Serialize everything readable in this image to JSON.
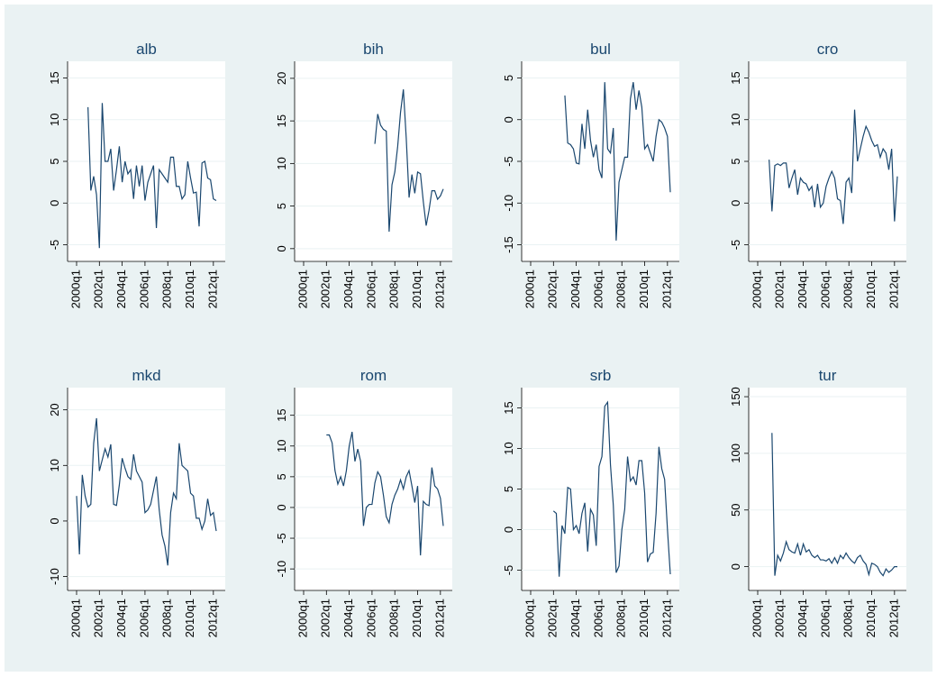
{
  "chart_data": [
    {
      "type": "line",
      "title": "alb",
      "color": "#1a476f",
      "grid": true,
      "x": [
        "2000q1",
        "2000q2",
        "2000q3",
        "2000q4",
        "2001q1",
        "2001q2",
        "2001q3",
        "2001q4",
        "2002q1",
        "2002q2",
        "2002q3",
        "2002q4",
        "2003q1",
        "2003q2",
        "2003q3",
        "2003q4",
        "2004q1",
        "2004q2",
        "2004q3",
        "2004q4",
        "2005q1",
        "2005q2",
        "2005q3",
        "2005q4",
        "2006q1",
        "2006q2",
        "2006q3",
        "2006q4",
        "2007q1",
        "2007q2",
        "2007q3",
        "2007q4",
        "2008q1",
        "2008q2",
        "2008q3",
        "2008q4",
        "2009q1",
        "2009q2",
        "2009q3",
        "2009q4",
        "2010q1",
        "2010q2",
        "2010q3",
        "2010q4",
        "2011q1",
        "2011q2",
        "2011q3",
        "2011q4",
        "2012q1",
        "2012q2"
      ],
      "values": [
        null,
        null,
        null,
        null,
        11.5,
        1.5,
        3.2,
        1,
        -5.4,
        12,
        5,
        5,
        6.5,
        1.5,
        4,
        6.8,
        2.5,
        5,
        3.5,
        4,
        0.5,
        4.5,
        2,
        4.5,
        0.3,
        2.5,
        3.5,
        4.5,
        -3,
        4,
        3.5,
        3,
        2.5,
        5.5,
        5.5,
        2,
        2,
        0.5,
        1,
        5,
        3,
        1.2,
        1.3,
        -2.8,
        4.8,
        5,
        3,
        2.8,
        0.5,
        0.3
      ],
      "ylim": [
        -7,
        17
      ],
      "yticks": [
        -5,
        0,
        5,
        10,
        15
      ],
      "xticks": [
        "2000q1",
        "2002q1",
        "2004q1",
        "2006q1",
        "2008q1",
        "2010q1",
        "2012q1"
      ]
    },
    {
      "type": "line",
      "title": "bih",
      "color": "#1a476f",
      "grid": true,
      "x": [
        "2000q1",
        "2000q2",
        "2000q3",
        "2000q4",
        "2001q1",
        "2001q2",
        "2001q3",
        "2001q4",
        "2002q1",
        "2002q2",
        "2002q3",
        "2002q4",
        "2003q1",
        "2003q2",
        "2003q3",
        "2003q4",
        "2004q1",
        "2004q2",
        "2004q3",
        "2004q4",
        "2005q1",
        "2005q2",
        "2005q3",
        "2005q4",
        "2006q1",
        "2006q2",
        "2006q3",
        "2006q4",
        "2007q1",
        "2007q2",
        "2007q3",
        "2007q4",
        "2008q1",
        "2008q2",
        "2008q3",
        "2008q4",
        "2009q1",
        "2009q2",
        "2009q3",
        "2009q4",
        "2010q1",
        "2010q2",
        "2010q3",
        "2010q4",
        "2011q1",
        "2011q2",
        "2011q3",
        "2011q4",
        "2012q1",
        "2012q2"
      ],
      "values": [
        null,
        null,
        null,
        null,
        null,
        null,
        null,
        null,
        null,
        null,
        null,
        null,
        null,
        null,
        null,
        null,
        null,
        null,
        null,
        null,
        null,
        null,
        null,
        null,
        null,
        12.3,
        15.8,
        14.5,
        14,
        13.8,
        2,
        7.5,
        9,
        12,
        16,
        18.7,
        13,
        6,
        8.7,
        6.5,
        9,
        8.8,
        5.5,
        2.7,
        4.5,
        6.8,
        6.8,
        5.8,
        6.2,
        7
      ],
      "ylim": [
        -1.5,
        22
      ],
      "yticks": [
        0,
        5,
        10,
        15,
        20
      ],
      "xticks": [
        "2000q1",
        "2002q1",
        "2004q1",
        "2006q1",
        "2008q1",
        "2010q1",
        "2012q1"
      ]
    },
    {
      "type": "line",
      "title": "bul",
      "color": "#1a476f",
      "grid": true,
      "x": [
        "2000q1",
        "2000q2",
        "2000q3",
        "2000q4",
        "2001q1",
        "2001q2",
        "2001q3",
        "2001q4",
        "2002q1",
        "2002q2",
        "2002q3",
        "2002q4",
        "2003q1",
        "2003q2",
        "2003q3",
        "2003q4",
        "2004q1",
        "2004q2",
        "2004q3",
        "2004q4",
        "2005q1",
        "2005q2",
        "2005q3",
        "2005q4",
        "2006q1",
        "2006q2",
        "2006q3",
        "2006q4",
        "2007q1",
        "2007q2",
        "2007q3",
        "2007q4",
        "2008q1",
        "2008q2",
        "2008q3",
        "2008q4",
        "2009q1",
        "2009q2",
        "2009q3",
        "2009q4",
        "2010q1",
        "2010q2",
        "2010q3",
        "2010q4",
        "2011q1",
        "2011q2",
        "2011q3",
        "2011q4",
        "2012q1",
        "2012q2"
      ],
      "values": [
        null,
        null,
        null,
        null,
        null,
        null,
        null,
        null,
        null,
        null,
        null,
        null,
        2.9,
        -2.8,
        -3,
        -3.5,
        -5.2,
        -5.3,
        -0.5,
        -3.5,
        1.2,
        -2.5,
        -4.5,
        -3,
        -6,
        -7,
        4.5,
        -3.5,
        -4,
        -1,
        -14.5,
        -7.5,
        -6,
        -4.5,
        -4.5,
        2.5,
        4.5,
        1.2,
        3.5,
        1.5,
        -3.5,
        -3,
        -4,
        -5,
        -2,
        0,
        -0.3,
        -1,
        -2,
        -8.7
      ],
      "ylim": [
        -17,
        7
      ],
      "yticks": [
        -15,
        -10,
        -5,
        0,
        5
      ],
      "xticks": [
        "2000q1",
        "2002q1",
        "2004q1",
        "2006q1",
        "2008q1",
        "2010q1",
        "2012q1"
      ]
    },
    {
      "type": "line",
      "title": "cro",
      "color": "#1a476f",
      "grid": true,
      "x": [
        "2000q1",
        "2000q2",
        "2000q3",
        "2000q4",
        "2001q1",
        "2001q2",
        "2001q3",
        "2001q4",
        "2002q1",
        "2002q2",
        "2002q3",
        "2002q4",
        "2003q1",
        "2003q2",
        "2003q3",
        "2003q4",
        "2004q1",
        "2004q2",
        "2004q3",
        "2004q4",
        "2005q1",
        "2005q2",
        "2005q3",
        "2005q4",
        "2006q1",
        "2006q2",
        "2006q3",
        "2006q4",
        "2007q1",
        "2007q2",
        "2007q3",
        "2007q4",
        "2008q1",
        "2008q2",
        "2008q3",
        "2008q4",
        "2009q1",
        "2009q2",
        "2009q3",
        "2009q4",
        "2010q1",
        "2010q2",
        "2010q3",
        "2010q4",
        "2011q1",
        "2011q2",
        "2011q3",
        "2011q4",
        "2012q1",
        "2012q2"
      ],
      "values": [
        null,
        null,
        null,
        null,
        5.2,
        -1,
        4.5,
        4.7,
        4.5,
        4.8,
        4.8,
        1.8,
        3,
        4,
        1,
        3,
        2.5,
        2.3,
        1.5,
        2,
        -0.5,
        2.3,
        -0.5,
        0,
        2,
        3,
        3.8,
        3,
        0.5,
        0.3,
        -2.5,
        2.5,
        3,
        1.2,
        11.2,
        5,
        6.5,
        8,
        9.2,
        8.5,
        7.5,
        6.8,
        7,
        5.5,
        6.5,
        6,
        4,
        6.5,
        -2.2,
        3.2
      ],
      "ylim": [
        -7,
        17
      ],
      "yticks": [
        -5,
        0,
        5,
        10,
        15
      ],
      "xticks": [
        "2000q1",
        "2002q1",
        "2004q1",
        "2006q1",
        "2008q1",
        "2010q1",
        "2012q1"
      ]
    },
    {
      "type": "line",
      "title": "mkd",
      "color": "#1a476f",
      "grid": true,
      "x": [
        "2000q1",
        "2000q2",
        "2000q3",
        "2000q4",
        "2001q1",
        "2001q2",
        "2001q3",
        "2001q4",
        "2002q1",
        "2002q2",
        "2002q3",
        "2002q4",
        "2003q1",
        "2003q2",
        "2003q3",
        "2003q4",
        "2004q1",
        "2004q2",
        "2004q3",
        "2004q4",
        "2005q1",
        "2005q2",
        "2005q3",
        "2005q4",
        "2006q1",
        "2006q2",
        "2006q3",
        "2006q4",
        "2007q1",
        "2007q2",
        "2007q3",
        "2007q4",
        "2008q1",
        "2008q2",
        "2008q3",
        "2008q4",
        "2009q1",
        "2009q2",
        "2009q3",
        "2009q4",
        "2010q1",
        "2010q2",
        "2010q3",
        "2010q4",
        "2011q1",
        "2011q2",
        "2011q3",
        "2011q4",
        "2012q1",
        "2012q2"
      ],
      "values": [
        4.5,
        -6,
        8.3,
        4.5,
        2.5,
        3,
        14,
        18.5,
        9,
        11,
        13,
        11.5,
        13.8,
        3,
        2.8,
        6.5,
        11.3,
        9.5,
        8,
        7.5,
        12,
        9,
        8,
        7,
        1.5,
        2,
        3,
        5.5,
        8,
        2,
        -2.5,
        -4.5,
        -8,
        1.5,
        5,
        4,
        14,
        10,
        9.5,
        9,
        5,
        4.5,
        0.5,
        0.5,
        -1.5,
        0,
        4,
        1,
        1.5,
        -1.8
      ],
      "ylim": [
        -12.5,
        24
      ],
      "yticks": [
        -10,
        0,
        10,
        20
      ],
      "xticks": [
        "2000q1",
        "2002q1",
        "2004q1",
        "2006q1",
        "2008q1",
        "2010q1",
        "2012q1"
      ]
    },
    {
      "type": "line",
      "title": "rom",
      "color": "#1a476f",
      "grid": true,
      "x": [
        "2000q1",
        "2000q2",
        "2000q3",
        "2000q4",
        "2001q1",
        "2001q2",
        "2001q3",
        "2001q4",
        "2002q1",
        "2002q2",
        "2002q3",
        "2002q4",
        "2003q1",
        "2003q2",
        "2003q3",
        "2003q4",
        "2004q1",
        "2004q2",
        "2004q3",
        "2004q4",
        "2005q1",
        "2005q2",
        "2005q3",
        "2005q4",
        "2006q1",
        "2006q2",
        "2006q3",
        "2006q4",
        "2007q1",
        "2007q2",
        "2007q3",
        "2007q4",
        "2008q1",
        "2008q2",
        "2008q3",
        "2008q4",
        "2009q1",
        "2009q2",
        "2009q3",
        "2009q4",
        "2010q1",
        "2010q2",
        "2010q3",
        "2010q4",
        "2011q1",
        "2011q2",
        "2011q3",
        "2011q4",
        "2012q1",
        "2012q2"
      ],
      "values": [
        null,
        null,
        null,
        null,
        null,
        null,
        null,
        null,
        11.8,
        11.8,
        10.5,
        6,
        3.8,
        5,
        3.5,
        6,
        10,
        12.3,
        7.5,
        9.5,
        7.5,
        -3,
        0,
        0.5,
        0.5,
        4,
        5.8,
        5,
        2,
        -1.5,
        -2.5,
        0.5,
        2,
        3,
        4.5,
        3,
        5,
        6,
        3.5,
        0.8,
        3.5,
        -7.8,
        1,
        0.5,
        0.3,
        6.5,
        3.5,
        3,
        1.5,
        -3
      ],
      "ylim": [
        -13.5,
        19.5
      ],
      "yticks": [
        -10,
        -5,
        0,
        5,
        10,
        15
      ],
      "xticks": [
        "2000q1",
        "2002q1",
        "2004q1",
        "2006q1",
        "2008q1",
        "2010q1",
        "2012q1"
      ]
    },
    {
      "type": "line",
      "title": "srb",
      "color": "#1a476f",
      "grid": true,
      "x": [
        "2000q1",
        "2000q2",
        "2000q3",
        "2000q4",
        "2001q1",
        "2001q2",
        "2001q3",
        "2001q4",
        "2002q1",
        "2002q2",
        "2002q3",
        "2002q4",
        "2003q1",
        "2003q2",
        "2003q3",
        "2003q4",
        "2004q1",
        "2004q2",
        "2004q3",
        "2004q4",
        "2005q1",
        "2005q2",
        "2005q3",
        "2005q4",
        "2006q1",
        "2006q2",
        "2006q3",
        "2006q4",
        "2007q1",
        "2007q2",
        "2007q3",
        "2007q4",
        "2008q1",
        "2008q2",
        "2008q3",
        "2008q4",
        "2009q1",
        "2009q2",
        "2009q3",
        "2009q4",
        "2010q1",
        "2010q2",
        "2010q3",
        "2010q4",
        "2011q1",
        "2011q2",
        "2011q3",
        "2011q4",
        "2012q1",
        "2012q2"
      ],
      "values": [
        null,
        null,
        null,
        null,
        null,
        null,
        null,
        null,
        2.3,
        2,
        -5.8,
        0.5,
        -0.5,
        5.2,
        5,
        0,
        0.5,
        -0.5,
        2,
        3.3,
        -2.7,
        2.5,
        1.8,
        -2,
        7.8,
        9,
        15.2,
        15.7,
        8,
        3,
        -5.3,
        -4.5,
        0,
        2.5,
        9,
        6,
        6.5,
        5.5,
        8.5,
        8.5,
        4.5,
        -4,
        -3,
        -2.8,
        2,
        10.2,
        7.5,
        6.2,
        0,
        -5.5
      ],
      "ylim": [
        -7.5,
        17.5
      ],
      "yticks": [
        -5,
        0,
        5,
        10,
        15
      ],
      "xticks": [
        "2000q1",
        "2002q1",
        "2004q1",
        "2006q1",
        "2008q1",
        "2010q1",
        "2012q1"
      ]
    },
    {
      "type": "line",
      "title": "tur",
      "color": "#1a476f",
      "grid": true,
      "x": [
        "2000q1",
        "2000q2",
        "2000q3",
        "2000q4",
        "2001q1",
        "2001q2",
        "2001q3",
        "2001q4",
        "2002q1",
        "2002q2",
        "2002q3",
        "2002q4",
        "2003q1",
        "2003q2",
        "2003q3",
        "2003q4",
        "2004q1",
        "2004q2",
        "2004q3",
        "2004q4",
        "2005q1",
        "2005q2",
        "2005q3",
        "2005q4",
        "2006q1",
        "2006q2",
        "2006q3",
        "2006q4",
        "2007q1",
        "2007q2",
        "2007q3",
        "2007q4",
        "2008q1",
        "2008q2",
        "2008q3",
        "2008q4",
        "2009q1",
        "2009q2",
        "2009q3",
        "2009q4",
        "2010q1",
        "2010q2",
        "2010q3",
        "2010q4",
        "2011q1",
        "2011q2",
        "2011q3",
        "2011q4",
        "2012q1",
        "2012q2"
      ],
      "values": [
        null,
        null,
        null,
        null,
        null,
        118,
        -8,
        10,
        5,
        12,
        22,
        15,
        13,
        12,
        20,
        10,
        20,
        13,
        15,
        10,
        8,
        10,
        6,
        6,
        5,
        7,
        3,
        8,
        3,
        10,
        7,
        12,
        8,
        5,
        3,
        8,
        10,
        5,
        2,
        -7,
        3,
        2,
        0,
        -5,
        -8,
        -2,
        -5,
        -3,
        0,
        0
      ],
      "ylim": [
        -21,
        158
      ],
      "yticks": [
        0,
        50,
        100,
        150
      ],
      "xticks": [
        "2000q1",
        "2002q1",
        "2004q1",
        "2006q1",
        "2008q1",
        "2010q1",
        "2012q1"
      ]
    }
  ]
}
